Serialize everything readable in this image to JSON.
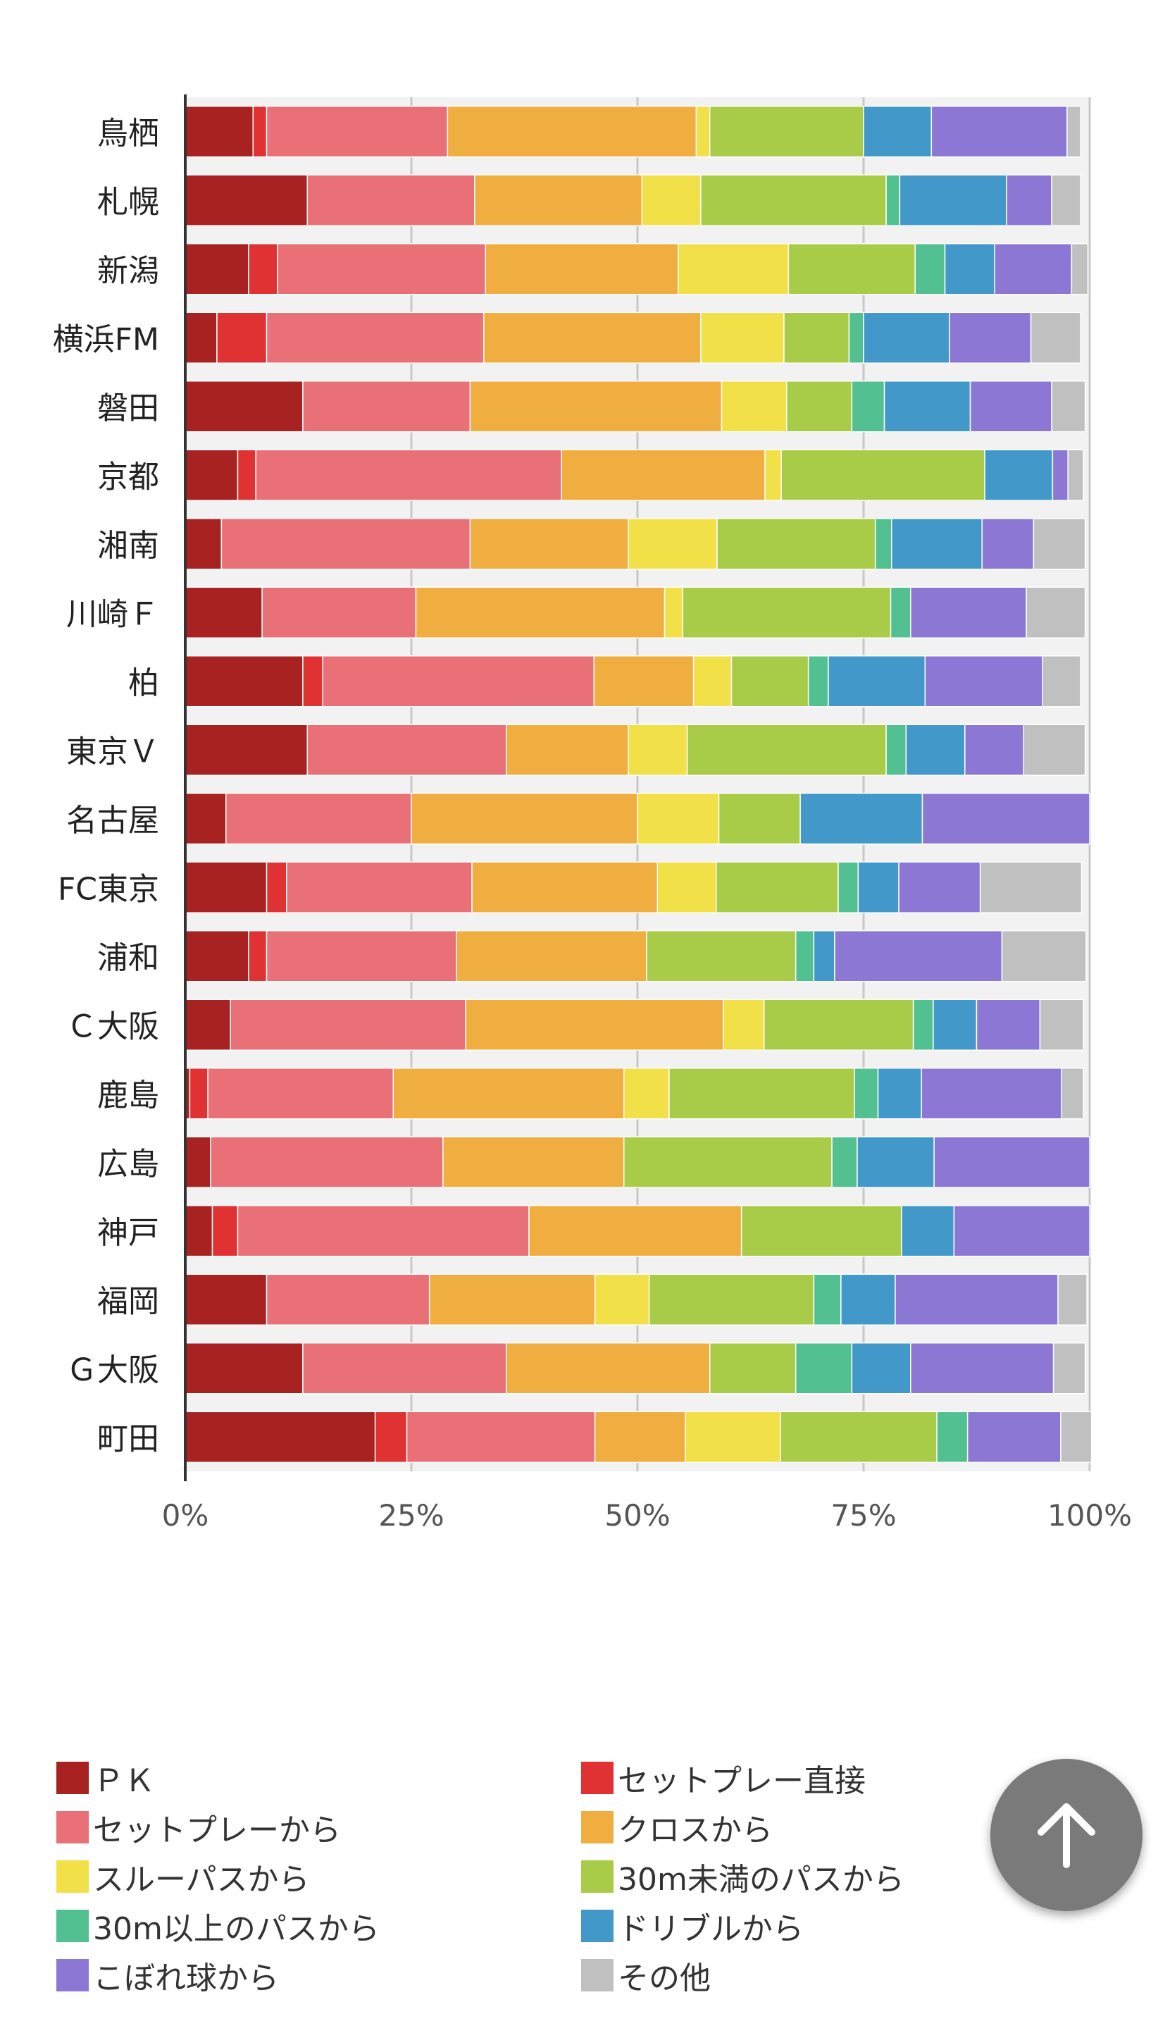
{
  "chart_data": {
    "type": "bar",
    "orientation": "horizontal",
    "stacked": true,
    "normalized": true,
    "categories": [
      "鳥栖",
      "札幌",
      "新潟",
      "横浜FM",
      "磐田",
      "京都",
      "湘南",
      "川崎Ｆ",
      "柏",
      "東京Ｖ",
      "名古屋",
      "FC東京",
      "浦和",
      "Ｃ大阪",
      "鹿島",
      "広島",
      "神戸",
      "福岡",
      "Ｇ大阪",
      "町田"
    ],
    "xlim": [
      0,
      100
    ],
    "x_ticks": [
      "0%",
      "25%",
      "50%",
      "75%",
      "100%"
    ],
    "x_tick_values": [
      0,
      25,
      50,
      75,
      100
    ],
    "grid": true,
    "legend_position": "bottom",
    "series": [
      {
        "name": "ＰＫ",
        "color": "#a82222",
        "values": [
          7.5,
          13.5,
          7.0,
          3.5,
          13.0,
          5.8,
          4.0,
          8.5,
          13.0,
          13.5,
          4.5,
          9.0,
          7.0,
          5.0,
          0.5,
          2.8,
          3.0,
          9.0,
          13.0,
          21.0
        ]
      },
      {
        "name": "セットプレー直接",
        "color": "#e03232",
        "values": [
          1.5,
          0.0,
          3.2,
          5.5,
          0.0,
          2.0,
          0.0,
          0.0,
          2.2,
          0.0,
          0.0,
          2.2,
          2.0,
          0.0,
          2.0,
          0.0,
          2.8,
          0.0,
          0.0,
          3.5
        ]
      },
      {
        "name": "セットプレーから",
        "color": "#ea7078",
        "values": [
          20.0,
          18.5,
          23.0,
          24.0,
          18.5,
          33.8,
          27.5,
          17.0,
          30.0,
          22.0,
          20.5,
          20.5,
          21.0,
          26.0,
          20.5,
          25.7,
          32.2,
          18.0,
          22.5,
          20.8
        ]
      },
      {
        "name": "クロスから",
        "color": "#f0ad40",
        "values": [
          27.5,
          18.5,
          21.3,
          24.0,
          27.8,
          22.5,
          17.5,
          27.5,
          11.0,
          13.5,
          25.0,
          20.5,
          21.0,
          28.5,
          25.5,
          20.0,
          23.5,
          18.3,
          22.5,
          10.0
        ]
      },
      {
        "name": "スルーパスから",
        "color": "#f2e048",
        "values": [
          1.5,
          6.5,
          12.2,
          9.2,
          7.2,
          1.8,
          9.8,
          2.0,
          4.2,
          6.5,
          9.0,
          6.5,
          0.0,
          4.5,
          5.0,
          0.0,
          0.0,
          6.0,
          0.0,
          10.5
        ]
      },
      {
        "name": "30m未満のパスから",
        "color": "#a8cc48",
        "values": [
          17.0,
          20.5,
          14.0,
          7.2,
          7.2,
          22.5,
          17.5,
          23.0,
          8.5,
          22.0,
          9.0,
          13.5,
          16.5,
          16.5,
          20.5,
          23.0,
          17.7,
          18.2,
          9.5,
          17.3
        ]
      },
      {
        "name": "30m以上のパスから",
        "color": "#52c090",
        "values": [
          0.0,
          1.5,
          3.3,
          1.6,
          3.6,
          0.0,
          1.8,
          2.2,
          2.2,
          2.2,
          0.0,
          2.2,
          2.0,
          2.2,
          2.6,
          2.8,
          0.0,
          3.0,
          6.2,
          3.4
        ]
      },
      {
        "name": "ドリブルから",
        "color": "#4298c8",
        "values": [
          7.5,
          11.8,
          5.5,
          9.5,
          9.5,
          7.5,
          10.0,
          0.0,
          10.7,
          6.5,
          13.5,
          4.5,
          2.3,
          4.8,
          4.8,
          8.5,
          5.8,
          6.0,
          6.5,
          0.0
        ]
      },
      {
        "name": "こぼれ球から",
        "color": "#8c78d4",
        "values": [
          15.0,
          5.0,
          8.5,
          9.0,
          9.0,
          1.7,
          5.7,
          12.8,
          13.0,
          6.5,
          18.5,
          9.0,
          18.5,
          7.0,
          15.5,
          17.2,
          15.0,
          18.0,
          15.8,
          10.3
        ]
      },
      {
        "name": "その他",
        "color": "#c0c0c0",
        "values": [
          1.5,
          3.2,
          1.8,
          5.5,
          3.7,
          1.7,
          5.7,
          6.5,
          4.2,
          6.8,
          0.0,
          11.2,
          9.3,
          4.8,
          2.4,
          0.0,
          0.0,
          3.2,
          3.5,
          3.4
        ]
      }
    ]
  },
  "legend": {
    "items": [
      {
        "label": "ＰＫ",
        "color": "#a82222"
      },
      {
        "label": "セットプレー直接",
        "color": "#e03232"
      },
      {
        "label": "セットプレーから",
        "color": "#ea7078"
      },
      {
        "label": "クロスから",
        "color": "#f0ad40"
      },
      {
        "label": "スルーパスから",
        "color": "#f2e048"
      },
      {
        "label": "30m未満のパスから",
        "color": "#a8cc48"
      },
      {
        "label": "30m以上のパスから",
        "color": "#52c090"
      },
      {
        "label": "ドリブルから",
        "color": "#4298c8"
      },
      {
        "label": "こぼれ球から",
        "color": "#8c78d4"
      },
      {
        "label": "その他",
        "color": "#c0c0c0"
      }
    ]
  },
  "scroll_top": {
    "icon": "arrow-up-icon",
    "color": "#7a7a7a"
  }
}
